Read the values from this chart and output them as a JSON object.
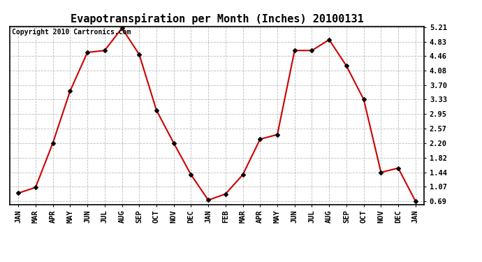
{
  "title": "Evapotranspiration per Month (Inches) 20100131",
  "copyright": "Copyright 2010 Cartronics.com",
  "x_labels": [
    "JAN",
    "MAR",
    "APR",
    "MAY",
    "JUN",
    "JUL",
    "AUG",
    "SEP",
    "OCT",
    "NOV",
    "DEC",
    "JAN",
    "FEB",
    "MAR",
    "APR",
    "MAY",
    "JUN",
    "JUL",
    "AUG",
    "SEP",
    "OCT",
    "NOV",
    "DEC",
    "JAN"
  ],
  "y_values": [
    0.9,
    1.05,
    2.2,
    3.55,
    4.55,
    4.6,
    5.18,
    4.5,
    3.05,
    2.2,
    1.38,
    0.72,
    0.88,
    1.38,
    2.3,
    2.42,
    4.6,
    4.6,
    4.88,
    4.2,
    3.33,
    1.44,
    1.55,
    0.69
  ],
  "y_ticks": [
    0.69,
    1.07,
    1.44,
    1.82,
    2.2,
    2.57,
    2.95,
    3.33,
    3.7,
    4.08,
    4.46,
    4.83,
    5.21
  ],
  "line_color": "#cc0000",
  "marker": "D",
  "marker_size": 3,
  "marker_color": "#000000",
  "background_color": "#ffffff",
  "grid_color": "#bbbbbb",
  "title_fontsize": 11,
  "tick_fontsize": 7.5,
  "copyright_fontsize": 7
}
